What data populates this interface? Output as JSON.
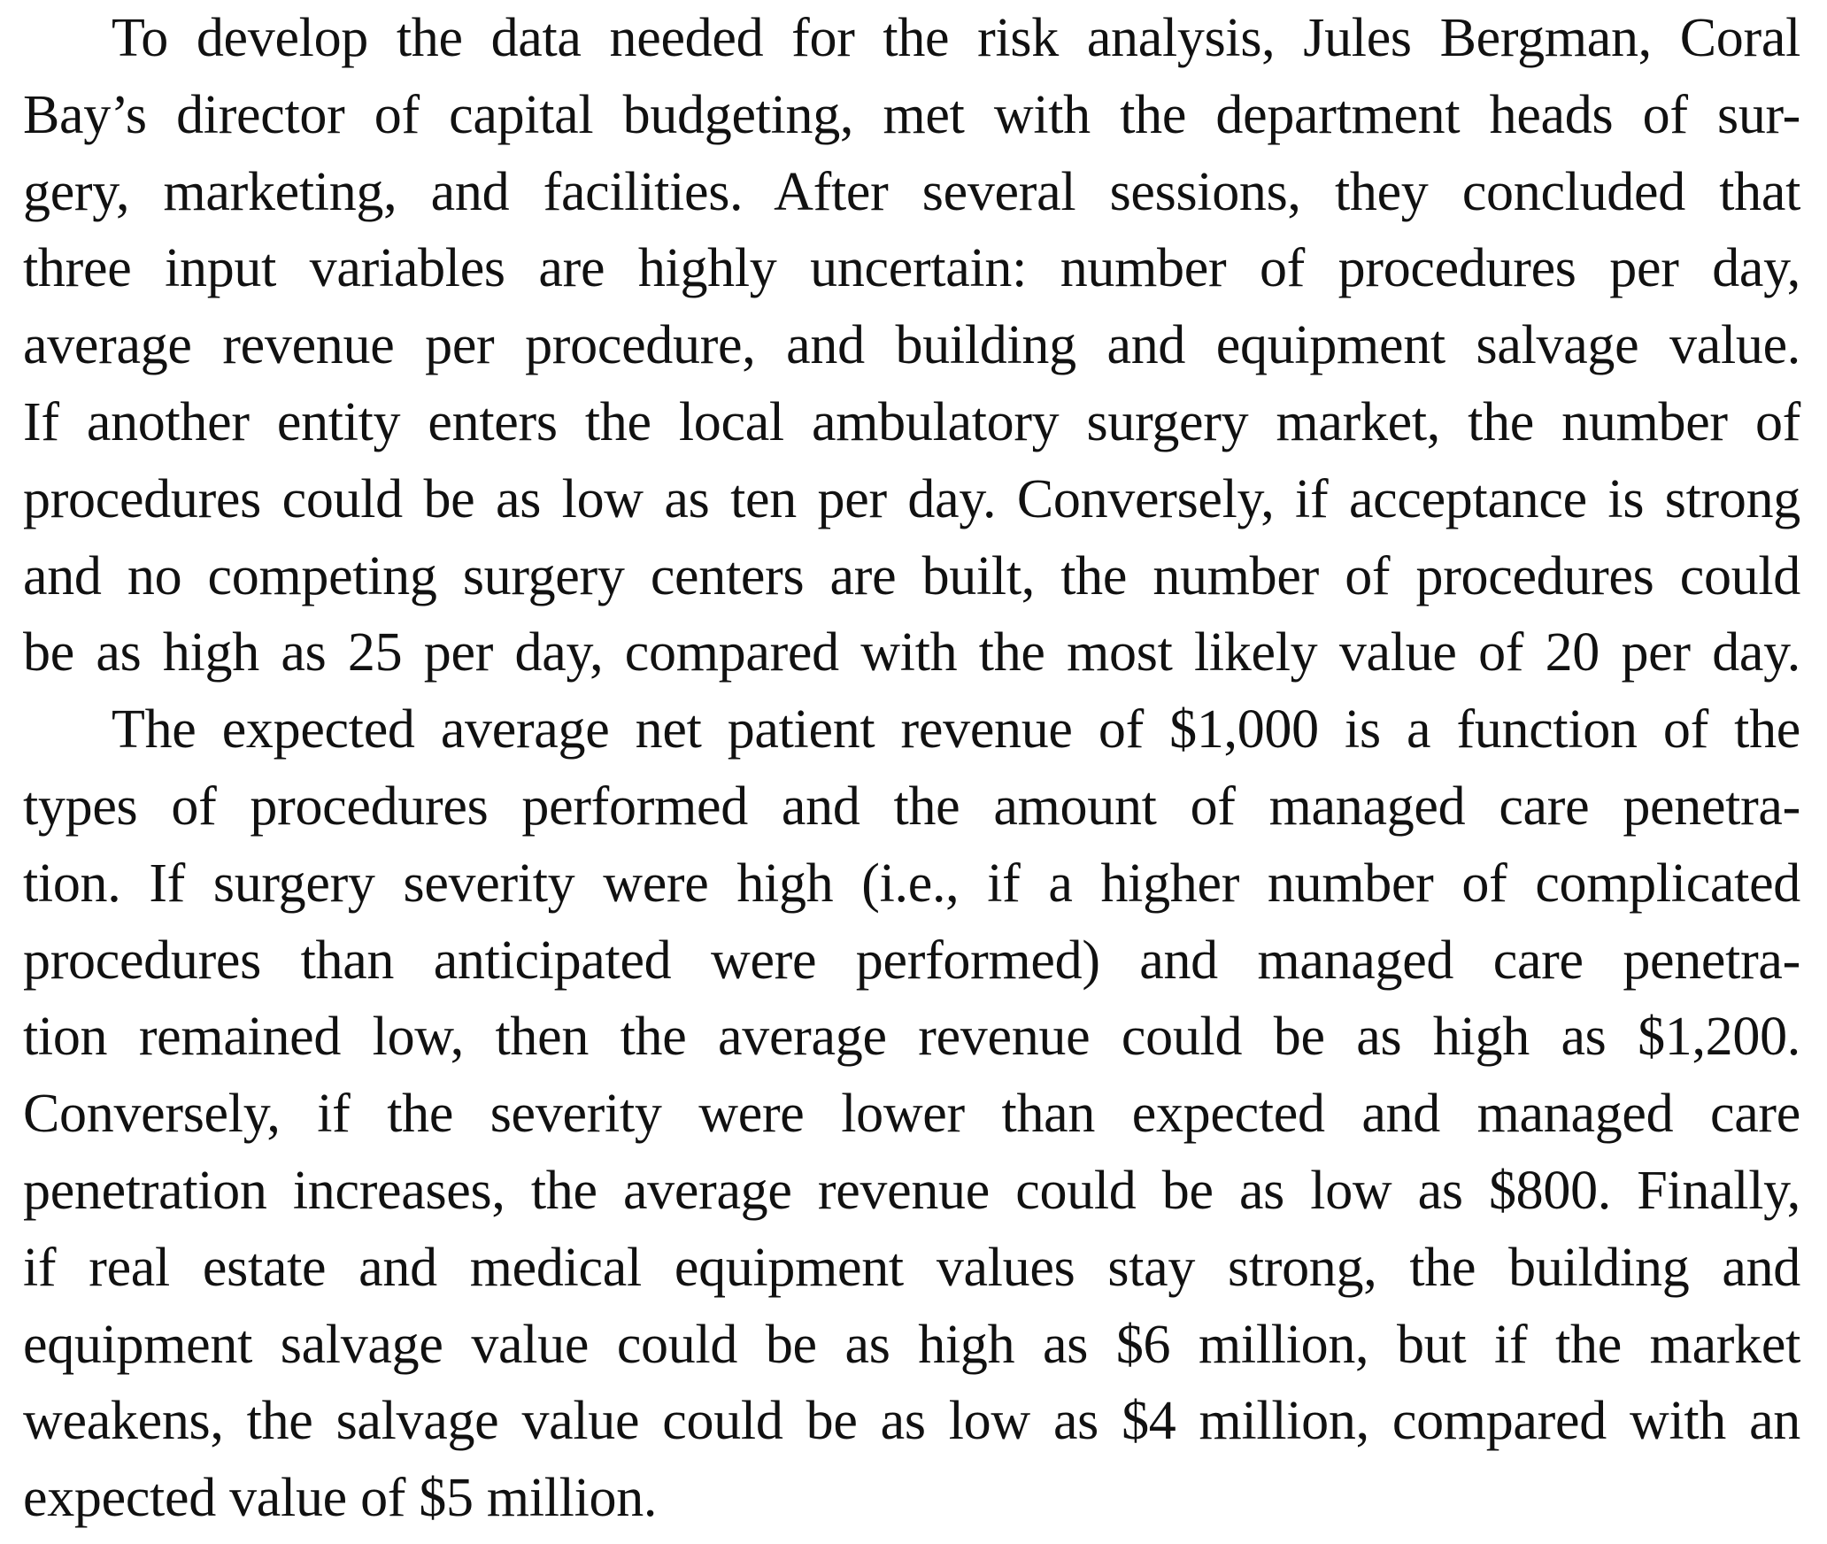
{
  "document": {
    "paragraphs": [
      {
        "lines": [
          "To develop the data needed for the risk analysis, Jules Bergman, Coral",
          "Bay’s director of capital budgeting, met with the department heads of sur-",
          "gery, marketing, and facilities. After several sessions, they concluded that",
          "three input variables are highly uncertain: number of procedures per day,",
          "average revenue per procedure, and building and equipment salvage value.",
          "If another entity enters the local ambulatory surgery market, the number of",
          "procedures could be as low as ten per day. Conversely, if acceptance is strong",
          "and no competing surgery centers are built, the number of procedures could",
          "be as high as 25 per day, compared with the most likely value of 20 per day."
        ]
      },
      {
        "lines": [
          "The expected average net patient revenue of $1,000 is a function of the",
          "types of procedures performed and the amount of managed care penetra-",
          "tion. If surgery severity were high (i.e., if a higher number of complicated",
          "procedures than anticipated were performed) and managed care penetra-",
          "tion remained low, then the average revenue could be as high as $1,200.",
          "Conversely, if the severity were lower than expected and managed care",
          "penetration increases, the average revenue could be as low as $800. Finally,",
          "if real estate and medical equipment values stay strong, the building and",
          "equipment salvage value could be as high as $6 million, but if the market",
          "weakens, the salvage value could be as low as $4 million, compared with an",
          "expected value of $5 million."
        ]
      }
    ]
  }
}
